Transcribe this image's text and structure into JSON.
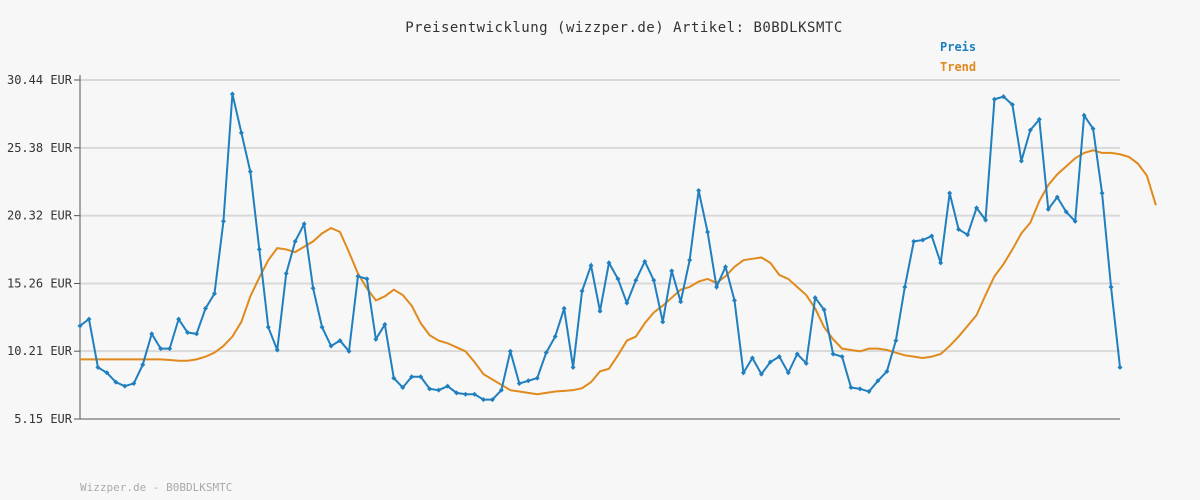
{
  "chart_data": {
    "type": "line",
    "title": "Preisentwicklung (wizzper.de) Artikel: B0BDLKSMTC",
    "ylim": [
      5.15,
      30.44
    ],
    "yticks": [
      "5.15 EUR",
      "10.21 EUR",
      "15.26 EUR",
      "20.32 EUR",
      "25.38 EUR",
      "30.44 EUR"
    ],
    "ytick_values": [
      5.15,
      10.21,
      15.26,
      20.32,
      25.38,
      30.44
    ],
    "grid": true,
    "legend_position": "top-right",
    "series": [
      {
        "name": "Preis",
        "color": "#1f7fbf",
        "values": [
          12.1,
          12.6,
          9.0,
          8.6,
          7.9,
          7.6,
          7.8,
          9.2,
          11.5,
          10.4,
          10.4,
          12.6,
          11.6,
          11.5,
          13.4,
          14.5,
          19.9,
          29.4,
          26.5,
          23.6,
          17.8,
          12.0,
          10.3,
          16.0,
          18.4,
          19.7,
          14.9,
          12.0,
          10.6,
          11.0,
          10.2,
          15.8,
          15.6,
          11.1,
          12.2,
          8.2,
          7.5,
          8.3,
          8.3,
          7.4,
          7.3,
          7.6,
          7.1,
          7.0,
          7.0,
          6.6,
          6.6,
          7.3,
          10.2,
          7.8,
          8.0,
          8.2,
          10.1,
          11.3,
          13.4,
          9.0,
          14.7,
          16.6,
          13.2,
          16.8,
          15.6,
          13.8,
          15.5,
          16.9,
          15.5,
          12.4,
          16.2,
          13.9,
          17.0,
          22.2,
          19.1,
          15.0,
          16.5,
          14.0,
          8.6,
          9.7,
          8.5,
          9.4,
          9.8,
          8.6,
          10.0,
          9.3,
          14.2,
          13.3,
          10.0,
          9.8,
          7.5,
          7.4,
          7.2,
          8.0,
          8.7,
          11.0,
          15.0,
          18.4,
          18.5,
          18.8,
          16.8,
          22.0,
          19.3,
          18.9,
          20.9,
          20.0,
          29.0,
          29.2,
          28.6,
          24.4,
          26.7,
          27.5,
          20.8,
          21.7,
          20.6,
          19.9,
          27.8,
          26.8,
          22.0,
          15.0,
          9.0
        ]
      },
      {
        "name": "Trend",
        "color": "#e08a1e",
        "values": [
          9.6,
          9.6,
          9.6,
          9.6,
          9.6,
          9.6,
          9.6,
          9.6,
          9.6,
          9.6,
          9.55,
          9.5,
          9.5,
          9.6,
          9.8,
          10.1,
          10.6,
          11.3,
          12.4,
          14.3,
          15.7,
          17.0,
          17.9,
          17.8,
          17.6,
          18.0,
          18.4,
          19.0,
          19.4,
          19.1,
          17.6,
          16.0,
          14.9,
          14.0,
          14.3,
          14.8,
          14.4,
          13.6,
          12.3,
          11.4,
          11.0,
          10.8,
          10.5,
          10.2,
          9.4,
          8.5,
          8.1,
          7.7,
          7.3,
          7.2,
          7.1,
          7.0,
          7.1,
          7.2,
          7.25,
          7.3,
          7.45,
          7.9,
          8.7,
          8.9,
          9.9,
          11.0,
          11.3,
          12.3,
          13.1,
          13.6,
          14.2,
          14.8,
          15.0,
          15.4,
          15.6,
          15.3,
          15.8,
          16.5,
          17.0,
          17.1,
          17.2,
          16.8,
          15.9,
          15.6,
          15.0,
          14.4,
          13.4,
          12.0,
          11.1,
          10.4,
          10.3,
          10.2,
          10.4,
          10.4,
          10.3,
          10.1,
          9.9,
          9.8,
          9.7,
          9.8,
          10.0,
          10.6,
          11.3,
          12.1,
          12.9,
          14.4,
          15.8,
          16.7,
          17.8,
          19.0,
          19.8,
          21.4,
          22.6,
          23.4,
          24.0,
          24.6,
          25.0,
          25.2,
          25.0,
          25.0,
          24.9,
          24.7,
          24.2,
          23.3,
          21.1
        ]
      }
    ]
  },
  "footer_text": "Wizzper.de - B0BDLKSMTC"
}
